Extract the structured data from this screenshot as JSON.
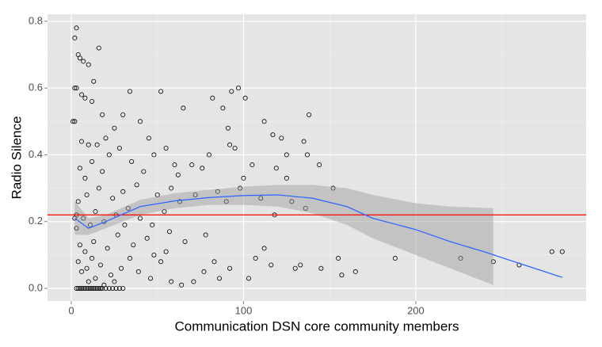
{
  "chart_data": {
    "type": "scatter",
    "x_label": "Communication DSN core community members",
    "y_label": "Radio Silence",
    "xlim": [
      -13.8,
      298.9
    ],
    "ylim": [
      -0.038,
      0.821
    ],
    "xticks": [
      0,
      100,
      200
    ],
    "yticks": [
      {
        "value": 0,
        "label": "0.0"
      },
      0.2,
      0.4,
      0.6,
      0.8
    ],
    "grid": true,
    "point_color": "#000000",
    "x": [
      3,
      4,
      5,
      6,
      7,
      8,
      9,
      10,
      11,
      12,
      13,
      14,
      15,
      16,
      17,
      18,
      20,
      22,
      24,
      26,
      28,
      30,
      3,
      2,
      4,
      5,
      7,
      10,
      16,
      3,
      2,
      2,
      1,
      13,
      6,
      8,
      12,
      18,
      34,
      52,
      65,
      82,
      88,
      93,
      97,
      101,
      112,
      138,
      135,
      137,
      144,
      117,
      122,
      125,
      119,
      125,
      105,
      100,
      95,
      91,
      92,
      80,
      76,
      60,
      70,
      62,
      45,
      40,
      30,
      25,
      20,
      15,
      10,
      6,
      5,
      8,
      12,
      18,
      22,
      28,
      35,
      42,
      48,
      55,
      58,
      50,
      38,
      30,
      24,
      16,
      9,
      4,
      3,
      7,
      11,
      14,
      19,
      26,
      33,
      40,
      47,
      54,
      63,
      72,
      85,
      98,
      110,
      118,
      128,
      152,
      136,
      90,
      78,
      66,
      57,
      44,
      36,
      27,
      21,
      13,
      8,
      5,
      4,
      6,
      9,
      12,
      17,
      23,
      29,
      34,
      39,
      46,
      52,
      58,
      64,
      71,
      77,
      83,
      86,
      92,
      103,
      107,
      112,
      116,
      130,
      133,
      145,
      155,
      157,
      165,
      188,
      226,
      245,
      260,
      279,
      285,
      55,
      48,
      31,
      2,
      3,
      10,
      14,
      19,
      25
    ],
    "y": [
      0,
      0,
      0,
      0,
      0,
      0,
      0,
      0,
      0,
      0,
      0,
      0,
      0,
      0,
      0,
      0,
      0,
      0,
      0,
      0,
      0,
      0,
      0.78,
      0.75,
      0.7,
      0.69,
      0.68,
      0.67,
      0.72,
      0.6,
      0.6,
      0.5,
      0.5,
      0.62,
      0.58,
      0.57,
      0.56,
      0.52,
      0.59,
      0.59,
      0.54,
      0.57,
      0.54,
      0.59,
      0.6,
      0.57,
      0.5,
      0.52,
      0.44,
      0.4,
      0.37,
      0.46,
      0.45,
      0.4,
      0.36,
      0.33,
      0.37,
      0.33,
      0.42,
      0.48,
      0.43,
      0.4,
      0.36,
      0.37,
      0.37,
      0.34,
      0.45,
      0.5,
      0.52,
      0.48,
      0.45,
      0.43,
      0.43,
      0.44,
      0.36,
      0.33,
      0.38,
      0.35,
      0.4,
      0.42,
      0.38,
      0.35,
      0.4,
      0.42,
      0.3,
      0.28,
      0.31,
      0.29,
      0.27,
      0.3,
      0.28,
      0.26,
      0.22,
      0.21,
      0.19,
      0.23,
      0.2,
      0.22,
      0.24,
      0.21,
      0.19,
      0.23,
      0.26,
      0.28,
      0.29,
      0.3,
      0.27,
      0.22,
      0.26,
      0.3,
      0.24,
      0.26,
      0.16,
      0.14,
      0.17,
      0.15,
      0.13,
      0.16,
      0.12,
      0.14,
      0.11,
      0.13,
      0.08,
      0.05,
      0.06,
      0.09,
      0.07,
      0.04,
      0.06,
      0.09,
      0.05,
      0.03,
      0.08,
      0.02,
      0.01,
      0.02,
      0.05,
      0.08,
      0.03,
      0.06,
      0.03,
      0.09,
      0.12,
      0.07,
      0.06,
      0.07,
      0.06,
      0.09,
      0.04,
      0.05,
      0.09,
      0.09,
      0.08,
      0.07,
      0.11,
      0.11,
      0.11,
      0.1,
      0.19,
      0.21,
      0.18,
      0.02,
      0.03,
      0.01,
      0.02
    ],
    "smooth": {
      "color": "#3366ff",
      "x": [
        2,
        10,
        20,
        40,
        60,
        80,
        100,
        120,
        140,
        160,
        175,
        200,
        220,
        240,
        260,
        285
      ],
      "y": [
        0.21,
        0.18,
        0.2,
        0.245,
        0.262,
        0.272,
        0.278,
        0.28,
        0.27,
        0.245,
        0.21,
        0.176,
        0.14,
        0.109,
        0.075,
        0.033
      ]
    },
    "band": {
      "color": "#999999",
      "x": [
        2,
        10,
        20,
        40,
        60,
        80,
        100,
        120,
        140,
        160,
        175,
        200,
        220,
        245
      ],
      "lower": [
        0.16,
        0.16,
        0.18,
        0.22,
        0.24,
        0.25,
        0.25,
        0.245,
        0.225,
        0.19,
        0.15,
        0.1,
        0.06,
        0.01
      ],
      "upper": [
        0.26,
        0.21,
        0.22,
        0.265,
        0.285,
        0.295,
        0.305,
        0.31,
        0.31,
        0.3,
        0.28,
        0.255,
        0.245,
        0.24
      ]
    },
    "hline": 0.22,
    "hline_color": "#ff0000"
  }
}
